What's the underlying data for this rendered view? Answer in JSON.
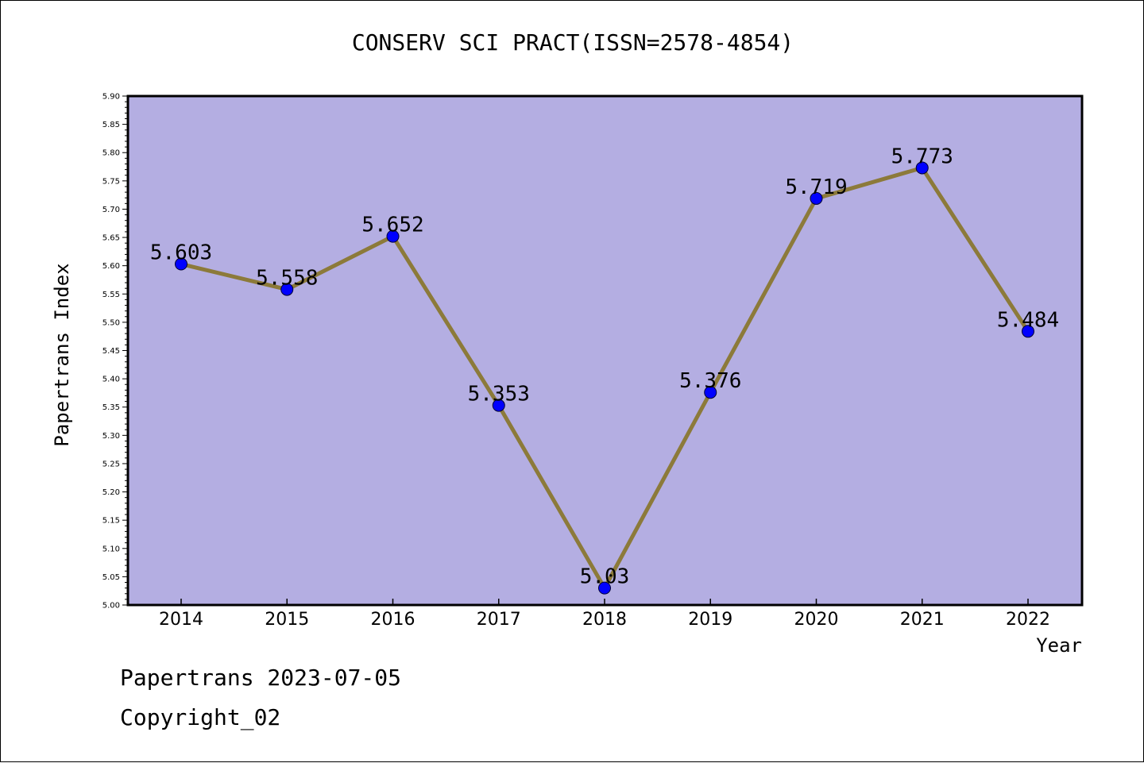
{
  "chart_data": {
    "type": "line",
    "title": "CONSERV SCI PRACT(ISSN=2578-4854)",
    "xlabel": "Year",
    "ylabel": "Papertrans Index",
    "categories": [
      "2014",
      "2015",
      "2016",
      "2017",
      "2018",
      "2019",
      "2020",
      "2021",
      "2022"
    ],
    "series": [
      {
        "values": [
          5.603,
          5.558,
          5.652,
          5.353,
          5.03,
          5.376,
          5.719,
          5.773,
          5.484
        ],
        "labels": [
          "5.603",
          "5.558",
          "5.652",
          "5.353",
          "5.03",
          "5.376",
          "5.719",
          "5.773",
          "5.484"
        ]
      }
    ],
    "ylim": [
      5.0,
      5.9
    ],
    "yticks": [
      "5.00",
      "5.05",
      "5.10",
      "5.15",
      "5.20",
      "5.25",
      "5.30",
      "5.35",
      "5.40",
      "5.45",
      "5.50",
      "5.55",
      "5.60",
      "5.65",
      "5.70",
      "5.75",
      "5.80",
      "5.85",
      "5.90"
    ],
    "grid": false,
    "colors": {
      "plot_background": "#b4aee2",
      "line": "#8c7a3a",
      "marker": "#0000ff"
    }
  },
  "footer": {
    "line1": "Papertrans 2023-07-05",
    "line2": "Copyright_02"
  }
}
